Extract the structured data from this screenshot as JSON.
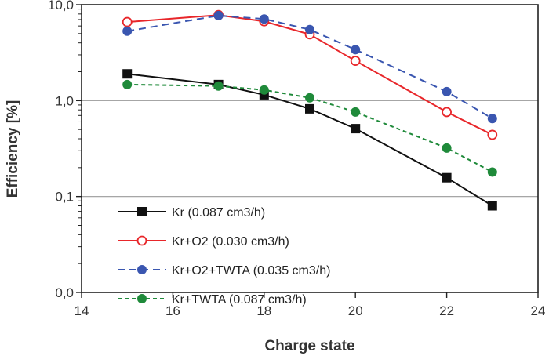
{
  "chart_data": {
    "type": "line",
    "title": "",
    "xlabel": "Charge state",
    "ylabel": "Efficiency [%]",
    "xlim": [
      14,
      24
    ],
    "ylim": [
      0.01,
      10
    ],
    "yscale": "log",
    "x_ticks": [
      "14",
      "16",
      "18",
      "20",
      "22",
      "24"
    ],
    "y_ticks": [
      {
        "value": 0.01,
        "label": "0,0"
      },
      {
        "value": 0.1,
        "label": "0,1"
      },
      {
        "value": 1,
        "label": "1,0"
      },
      {
        "value": 10,
        "label": "10,0"
      }
    ],
    "grid": "horizontal major lines at 0.1 and 1",
    "legend_placement": "bottom-left",
    "x": [
      15,
      17,
      18,
      19,
      20,
      22,
      23
    ],
    "series": [
      {
        "name": "Kr (0.087 cm3/h)",
        "color": "#111111",
        "marker": "square-filled",
        "dash": "solid",
        "values": [
          1.9,
          1.47,
          1.15,
          0.82,
          0.51,
          0.157,
          0.08
        ]
      },
      {
        "name": "Kr+O2 (0.030 cm3/h)",
        "color": "#e8262a",
        "marker": "circle-open",
        "dash": "solid",
        "values": [
          6.6,
          7.8,
          6.7,
          4.9,
          2.6,
          0.76,
          0.44
        ]
      },
      {
        "name": "Kr+O2+TWTA (0.035 cm3/h)",
        "color": "#3a56b0",
        "marker": "circle-filled",
        "dash": "long-dash",
        "values": [
          5.3,
          7.7,
          7.1,
          5.5,
          3.4,
          1.24,
          0.65
        ]
      },
      {
        "name": "Kr+TWTA (0.087 cm3/h)",
        "color": "#1f8a3a",
        "marker": "circle-filled",
        "dash": "short-dash",
        "values": [
          1.47,
          1.42,
          1.29,
          1.07,
          0.76,
          0.32,
          0.18
        ]
      }
    ]
  }
}
